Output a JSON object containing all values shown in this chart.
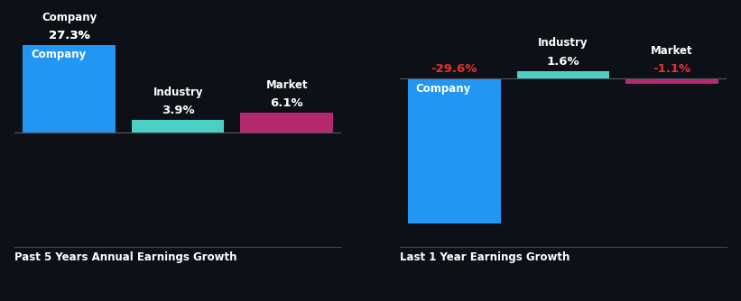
{
  "background_color": "#0d1117",
  "chart1": {
    "title": "Past 5 Years Annual Earnings Growth",
    "bars": [
      {
        "label": "Company",
        "value": 27.3,
        "color": "#2196f3"
      },
      {
        "label": "Industry",
        "value": 3.9,
        "color": "#4dd0c4"
      },
      {
        "label": "Market",
        "value": 6.1,
        "color": "#b5296e"
      }
    ],
    "ylim": [
      -32,
      32
    ]
  },
  "chart2": {
    "title": "Last 1 Year Earnings Growth",
    "bars": [
      {
        "label": "Company",
        "value": -29.6,
        "color": "#2196f3"
      },
      {
        "label": "Industry",
        "value": 1.6,
        "color": "#4dd0c4"
      },
      {
        "label": "Market",
        "value": -1.1,
        "color": "#b5296e"
      }
    ],
    "ylim": [
      -32,
      10
    ]
  },
  "value_color_positive": "#ffffff",
  "value_color_negative": "#e83030",
  "label_color": "#ffffff",
  "title_color": "#ffffff",
  "bar_width": 0.85,
  "x_positions": [
    0,
    1,
    2
  ],
  "xlim": [
    -0.5,
    2.5
  ]
}
